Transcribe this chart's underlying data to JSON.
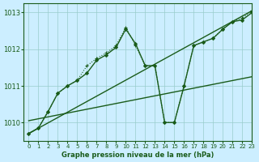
{
  "title": "Graphe pression niveau de la mer (hPa)",
  "background_color": "#cceeff",
  "grid_color": "#99cccc",
  "line_color": "#1a5c1a",
  "xlim": [
    -0.5,
    23
  ],
  "ylim": [
    1009.5,
    1013.25
  ],
  "yticks": [
    1010,
    1011,
    1012,
    1013
  ],
  "xticks": [
    0,
    1,
    2,
    3,
    4,
    5,
    6,
    7,
    8,
    9,
    10,
    11,
    12,
    13,
    14,
    15,
    16,
    17,
    18,
    19,
    20,
    21,
    22,
    23
  ],
  "series": [
    {
      "x": [
        0,
        1,
        2,
        3,
        4,
        5,
        6,
        7,
        8,
        9,
        10,
        11,
        12,
        13,
        14,
        15,
        16,
        17,
        18,
        19,
        20,
        21,
        22,
        23
      ],
      "y": [
        1009.7,
        1009.85,
        1010.3,
        1010.8,
        1011.0,
        1011.15,
        1011.35,
        1011.7,
        1011.85,
        1012.05,
        1012.55,
        1012.15,
        1011.55,
        1011.55,
        1010.0,
        1010.0,
        1011.0,
        1012.1,
        1012.2,
        1012.3,
        1012.55,
        1012.75,
        1012.8,
        1013.0
      ],
      "marker": "D",
      "markersize": 2.0,
      "linewidth": 1.0,
      "linestyle": "-"
    },
    {
      "x": [
        0,
        1,
        2,
        3,
        4,
        5,
        6,
        7,
        8,
        9,
        10,
        11,
        12,
        13,
        14,
        15,
        16,
        17,
        18,
        19,
        20,
        21,
        22,
        23
      ],
      "y": [
        1009.7,
        1009.85,
        1010.3,
        1010.8,
        1011.0,
        1011.15,
        1011.55,
        1011.75,
        1011.9,
        1012.1,
        1012.6,
        1012.1,
        1011.55,
        1011.55,
        1010.0,
        1010.0,
        1011.0,
        1012.1,
        1012.2,
        1012.3,
        1012.55,
        1012.75,
        1012.85,
        1013.05
      ],
      "marker": "+",
      "markersize": 3.5,
      "linewidth": 0.8,
      "linestyle": ":"
    },
    {
      "x": [
        0,
        23
      ],
      "y": [
        1009.7,
        1013.05
      ],
      "marker": null,
      "markersize": 0,
      "linewidth": 1.0,
      "linestyle": "-"
    },
    {
      "x": [
        0,
        23
      ],
      "y": [
        1010.05,
        1011.25
      ],
      "marker": null,
      "markersize": 0,
      "linewidth": 1.0,
      "linestyle": "-"
    }
  ]
}
